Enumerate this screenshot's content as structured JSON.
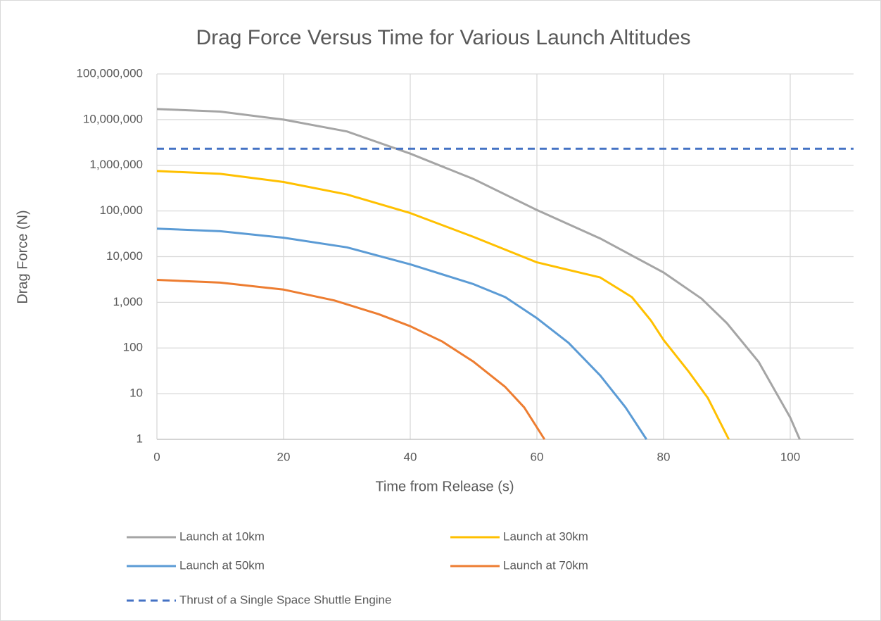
{
  "chart_data": {
    "type": "line",
    "title": "Drag Force Versus Time for Various Launch Altitudes",
    "x_label": "Time from Release (s)",
    "y_label": "Drag Force (N)",
    "log_y": true,
    "grid": true,
    "legend": "bottom",
    "xlim": [
      0,
      110
    ],
    "xticks": [
      0,
      20,
      40,
      60,
      80,
      100
    ],
    "ylim": [
      1,
      100000000
    ],
    "yticks": [
      1,
      10,
      100,
      {
        "value": 1000,
        "label": "1,000"
      },
      {
        "value": 10000,
        "label": "10,000"
      },
      {
        "value": 100000,
        "label": "100,000"
      },
      {
        "value": 1000000,
        "label": "1,000,000"
      },
      {
        "value": 10000000,
        "label": "10,000,000"
      },
      {
        "value": 100000000,
        "label": "100,000,000"
      }
    ],
    "series": [
      {
        "name": "Launch at 10km",
        "color": "#a5a5a5",
        "dash": false,
        "x": [
          0,
          10,
          20,
          30,
          40,
          50,
          60,
          70,
          80,
          86,
          90,
          95,
          100,
          101.5
        ],
        "values": [
          17000000,
          15000000,
          10000000,
          5500000,
          1800000,
          500000,
          105000,
          25000,
          4500,
          1200,
          350,
          50,
          3,
          1
        ]
      },
      {
        "name": "Launch at 30km",
        "color": "#ffc000",
        "dash": false,
        "x": [
          0,
          10,
          20,
          30,
          40,
          50,
          60,
          70,
          75,
          78,
          80,
          84,
          87,
          90.3
        ],
        "values": [
          750000,
          650000,
          430000,
          230000,
          90000,
          27000,
          7500,
          3500,
          1300,
          400,
          150,
          30,
          8,
          1
        ]
      },
      {
        "name": "Launch at 50km",
        "color": "#5b9bd5",
        "dash": false,
        "x": [
          0,
          10,
          20,
          30,
          40,
          50,
          55,
          60,
          65,
          70,
          74,
          77.3
        ],
        "values": [
          41000,
          36000,
          26000,
          16000,
          6800,
          2500,
          1300,
          450,
          130,
          25,
          5,
          1
        ]
      },
      {
        "name": "Launch at  70km",
        "color": "#ed7d31",
        "dash": false,
        "x": [
          0,
          10,
          20,
          28,
          35,
          40,
          45,
          50,
          55,
          58,
          61.2
        ],
        "values": [
          3100,
          2700,
          1900,
          1100,
          550,
          300,
          140,
          50,
          14,
          5,
          1
        ]
      },
      {
        "name": "Thrust of a Single Space Shuttle Engine",
        "color": "#4472c4",
        "dash": true,
        "x": [
          0,
          110
        ],
        "values": [
          2300000,
          2300000
        ]
      }
    ]
  }
}
